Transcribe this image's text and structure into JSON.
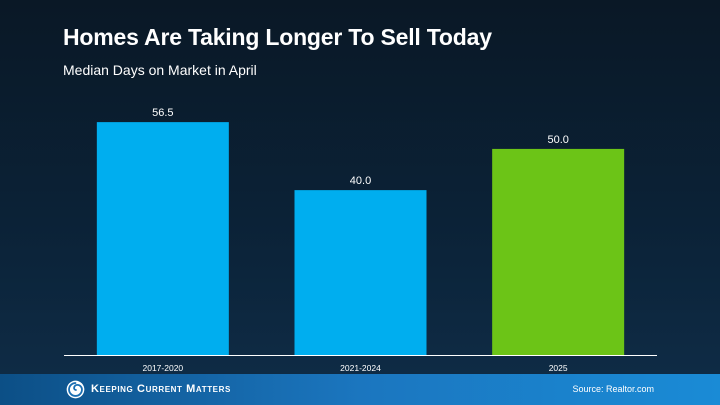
{
  "header": {
    "title": "Homes Are Taking Longer To Sell Today",
    "subtitle": "Median Days on Market in April"
  },
  "footer": {
    "logo_text": "Keeping Current Matters",
    "logo_icon": "spiral-logo-icon",
    "source": "Source: Realtor.com"
  },
  "chart_data": {
    "type": "bar",
    "categories": [
      "2017-2020",
      "2021-2024",
      "2025"
    ],
    "values": [
      56.5,
      40.0,
      50.0
    ],
    "value_labels": [
      "56.5",
      "40.0",
      "50.0"
    ],
    "bar_colors": [
      "#00aeef",
      "#00aeef",
      "#6cc417"
    ],
    "title": "Homes Are Taking Longer To Sell Today",
    "subtitle": "Median Days on Market in April",
    "xlabel": "",
    "ylabel": "",
    "ylim": [
      0,
      57.5
    ],
    "grid": false,
    "legend": "none"
  }
}
